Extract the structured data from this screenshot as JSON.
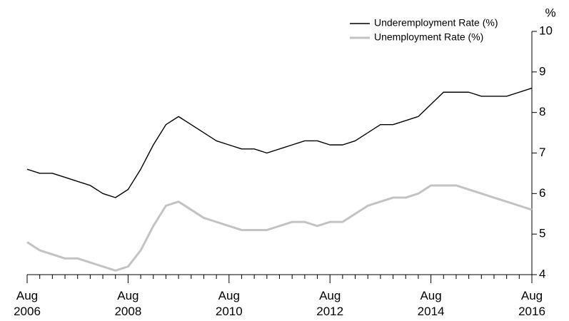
{
  "chart_data": {
    "type": "line",
    "y_unit": "%",
    "categories": [
      "Aug 2006",
      null,
      null,
      null,
      null,
      null,
      null,
      null,
      "Aug 2008",
      null,
      null,
      null,
      null,
      null,
      null,
      null,
      "Aug 2010",
      null,
      null,
      null,
      null,
      null,
      null,
      null,
      "Aug 2012",
      null,
      null,
      null,
      null,
      null,
      null,
      null,
      "Aug 2014",
      null,
      null,
      null,
      null,
      null,
      null,
      null,
      "Aug 2016"
    ],
    "series": [
      {
        "name": "Underemployment Rate (%)",
        "color": "#000000",
        "width": 1.4,
        "values": [
          6.6,
          6.5,
          6.5,
          6.4,
          6.3,
          6.2,
          6.0,
          5.9,
          6.1,
          6.6,
          7.2,
          7.7,
          7.9,
          7.7,
          7.5,
          7.3,
          7.2,
          7.1,
          7.1,
          7.0,
          7.1,
          7.2,
          7.3,
          7.3,
          7.2,
          7.2,
          7.3,
          7.5,
          7.7,
          7.7,
          7.8,
          7.9,
          8.2,
          8.5,
          8.5,
          8.5,
          8.4,
          8.4,
          8.4,
          8.5,
          8.6
        ]
      },
      {
        "name": "Unemployment Rate (%)",
        "color": "#c3c3c3",
        "width": 3,
        "values": [
          4.8,
          4.6,
          4.5,
          4.4,
          4.4,
          4.3,
          4.2,
          4.1,
          4.2,
          4.6,
          5.2,
          5.7,
          5.8,
          5.6,
          5.4,
          5.3,
          5.2,
          5.1,
          5.1,
          5.1,
          5.2,
          5.3,
          5.3,
          5.2,
          5.3,
          5.3,
          5.5,
          5.7,
          5.8,
          5.9,
          5.9,
          6.0,
          6.2,
          6.2,
          6.2,
          6.1,
          6.0,
          5.9,
          5.8,
          5.7,
          5.6
        ]
      }
    ],
    "ylim": [
      4,
      10
    ],
    "yticks": [
      4,
      5,
      6,
      7,
      8,
      9,
      10
    ],
    "y_axis_side": "right",
    "grid": false
  }
}
